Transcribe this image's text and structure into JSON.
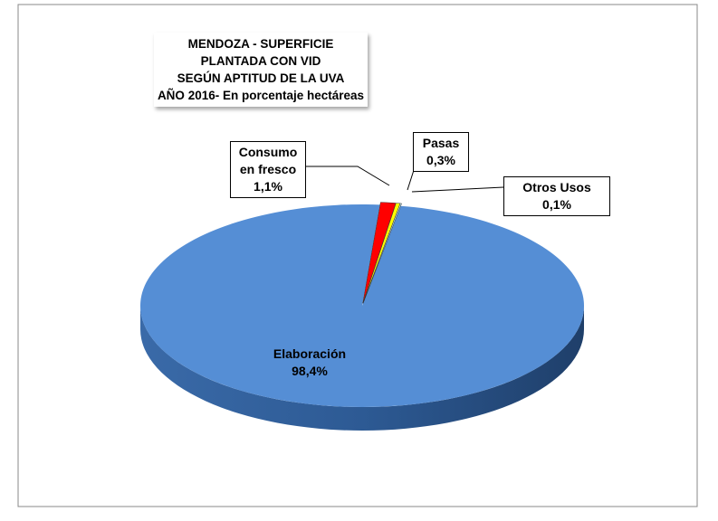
{
  "chart_data": {
    "type": "pie3d",
    "title": [
      "MENDOZA - SUPERFICIE PLANTADA CON VID",
      "SEGÚN APTITUD DE LA UVA",
      "AÑO 2016- En porcentaje hectáreas"
    ],
    "categories": [
      "Elaboración",
      "Consumo en fresco",
      "Pasas",
      "Otros Usos"
    ],
    "values": [
      98.4,
      1.1,
      0.3,
      0.1
    ],
    "value_labels": [
      "98,4%",
      "1,1%",
      "0,3%",
      "0,1%"
    ],
    "colors": [
      "#558ed5",
      "#ff0000",
      "#ffff00",
      "#b7dee8"
    ]
  }
}
